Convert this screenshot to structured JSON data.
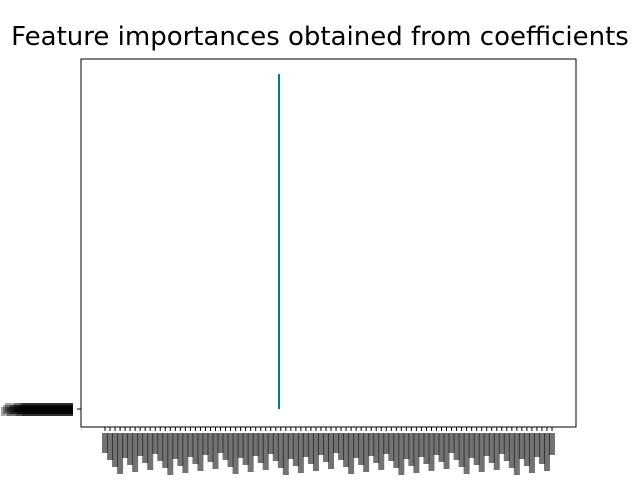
{
  "chart_data": {
    "type": "bar",
    "orientation": "horizontal",
    "title": "Feature importances obtained from coefficients",
    "xlabel": "",
    "ylabel": "",
    "grid": false,
    "legend": "none",
    "bar_color": "#008080",
    "x_tick_count": 90,
    "y_tick_count": 12,
    "y_tick_labels_note": "overlapping, illegible",
    "x_tick_labels_note": "rotated, overlapping, illegible",
    "bars": [
      {
        "position": 0.4,
        "value": 1.0
      }
    ]
  }
}
